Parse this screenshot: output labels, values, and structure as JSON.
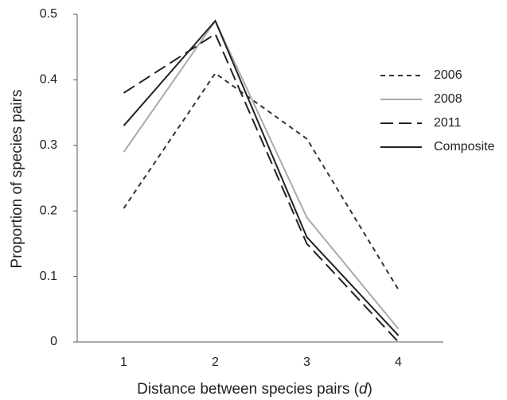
{
  "chart_data": {
    "type": "line",
    "x_label": [
      "Distance between species pairs (",
      "d",
      ")"
    ],
    "y_label": "Proportion of species pairs",
    "categories": [
      "1",
      "2",
      "3",
      "4"
    ],
    "ylim": [
      0,
      0.5
    ],
    "yticks": [
      0,
      0.1,
      0.2,
      0.3,
      0.4,
      0.5
    ],
    "legend": "right",
    "series": [
      {
        "name": "2006",
        "color": "#333333",
        "dash": "6,5",
        "values": [
          0.204,
          0.41,
          0.31,
          0.08
        ]
      },
      {
        "name": "2008",
        "color": "#aaaaaa",
        "dash": "none",
        "values": [
          0.29,
          0.49,
          0.19,
          0.02
        ]
      },
      {
        "name": "2011",
        "color": "#222222",
        "dash": "16,7",
        "values": [
          0.38,
          0.47,
          0.15,
          0
        ]
      },
      {
        "name": "Composite",
        "color": "#222222",
        "dash": "none",
        "values": [
          0.33,
          0.49,
          0.16,
          0.01
        ]
      }
    ]
  }
}
